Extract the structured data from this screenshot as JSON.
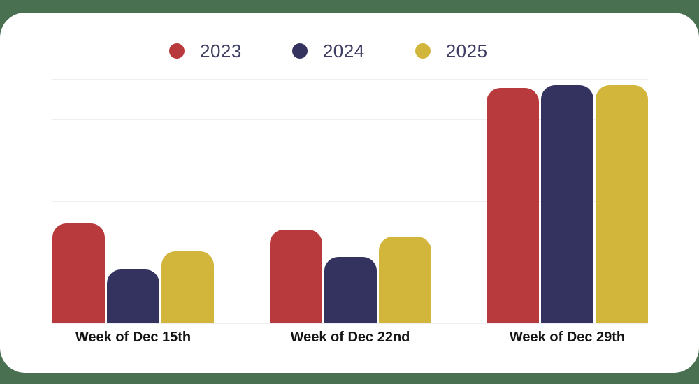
{
  "page": {
    "background_color": "#4a7052",
    "card_color": "#ffffff",
    "gridline_color": "#efeef3",
    "legend_text_color": "#3e3d62",
    "axis_label_color": "#141414"
  },
  "legend": {
    "items": [
      {
        "label": "2023",
        "color": "#b93a3c"
      },
      {
        "label": "2024",
        "color": "#343360"
      },
      {
        "label": "2025",
        "color": "#d2b63c"
      }
    ]
  },
  "chart_data": {
    "type": "bar",
    "title": "",
    "xlabel": "",
    "ylabel": "",
    "categories": [
      "Week of Dec 15th",
      "Week of Dec 22nd",
      "Week of Dec 29th"
    ],
    "series": [
      {
        "name": "2023",
        "color": "#b93a3c",
        "values": [
          2.45,
          2.3,
          5.78
        ]
      },
      {
        "name": "2024",
        "color": "#343360",
        "values": [
          1.32,
          1.63,
          5.85
        ]
      },
      {
        "name": "2025",
        "color": "#d2b63c",
        "values": [
          1.77,
          2.12,
          5.85
        ]
      }
    ],
    "ylim": [
      0,
      6
    ],
    "gridline_step": 1,
    "y_tick_labels_visible": false,
    "grid": true,
    "legend_position": "top"
  }
}
